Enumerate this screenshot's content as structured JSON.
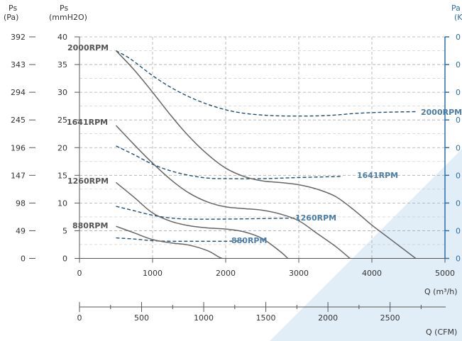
{
  "chart_data": {
    "type": "line",
    "title": "",
    "colors": {
      "static_curve": "#666666",
      "power_curve": "#1e4f7a",
      "grid": "#aaaaaa",
      "right_axis": "#2a6fa8",
      "watermark": "#dcebf7"
    },
    "axes": {
      "y_pa": {
        "label_line1": "Ps",
        "label_line2": "(Pa)",
        "ticks": [
          "392",
          "343",
          "294",
          "245",
          "196",
          "147",
          "98",
          "49",
          "0"
        ]
      },
      "y_mmh2o": {
        "label_line1": "Ps",
        "label_line2": "(mmH2O)",
        "ylim": [
          0,
          40
        ],
        "ticks": [
          0,
          5,
          10,
          15,
          20,
          25,
          30,
          35,
          40
        ]
      },
      "y_power": {
        "label_line1": "Pa",
        "label_line2": "(K",
        "ticks": [
          "0",
          "0",
          "0",
          "0",
          "0",
          "0",
          "0",
          "0",
          "0"
        ]
      },
      "x_m3h": {
        "label": "Q (m³/h)",
        "xlim": [
          0,
          5000
        ],
        "ticks": [
          0,
          1000,
          2000,
          3000,
          4000,
          5000
        ]
      },
      "x_cfm": {
        "label": "Q (CFM)",
        "xlim": [
          0,
          2942
        ],
        "ticks": [
          0,
          500,
          1000,
          1500,
          2000,
          2500
        ]
      }
    },
    "grid": true,
    "pressure_series": [
      {
        "name": "2000RPM",
        "points": [
          [
            500,
            37.5
          ],
          [
            750,
            34
          ],
          [
            1000,
            30
          ],
          [
            1250,
            25.8
          ],
          [
            1500,
            22
          ],
          [
            1750,
            18.8
          ],
          [
            2000,
            16.3
          ],
          [
            2250,
            14.8
          ],
          [
            2500,
            14
          ],
          [
            2750,
            13.7
          ],
          [
            3000,
            13.3
          ],
          [
            3250,
            12.5
          ],
          [
            3500,
            11.2
          ],
          [
            3750,
            8.8
          ],
          [
            4000,
            6
          ],
          [
            4250,
            3.5
          ],
          [
            4600,
            0
          ]
        ]
      },
      {
        "name": "1641RPM",
        "points": [
          [
            500,
            24
          ],
          [
            750,
            20.5
          ],
          [
            1000,
            17.2
          ],
          [
            1250,
            14.2
          ],
          [
            1500,
            11.8
          ],
          [
            1750,
            10.2
          ],
          [
            2000,
            9.3
          ],
          [
            2250,
            9
          ],
          [
            2500,
            8.7
          ],
          [
            2750,
            8
          ],
          [
            3000,
            6.8
          ],
          [
            3250,
            4.5
          ],
          [
            3500,
            2.2
          ],
          [
            3700,
            0
          ]
        ]
      },
      {
        "name": "1260RPM",
        "points": [
          [
            500,
            13.7
          ],
          [
            750,
            11
          ],
          [
            1000,
            8.2
          ],
          [
            1250,
            6.7
          ],
          [
            1500,
            5.9
          ],
          [
            1750,
            5.5
          ],
          [
            2000,
            5.3
          ],
          [
            2250,
            4.8
          ],
          [
            2500,
            3.6
          ],
          [
            2750,
            1.2
          ],
          [
            2850,
            0
          ]
        ]
      },
      {
        "name": "880RPM",
        "points": [
          [
            500,
            5.8
          ],
          [
            750,
            4.6
          ],
          [
            1000,
            3.4
          ],
          [
            1250,
            2.8
          ],
          [
            1500,
            2.4
          ],
          [
            1750,
            1.4
          ],
          [
            1900,
            0.3
          ],
          [
            1950,
            0
          ]
        ]
      }
    ],
    "power_series": [
      {
        "name": "2000RPM",
        "points": [
          [
            500,
            37.5
          ],
          [
            700,
            36
          ],
          [
            1000,
            33
          ],
          [
            1300,
            30.5
          ],
          [
            1600,
            28.6
          ],
          [
            1900,
            27.2
          ],
          [
            2200,
            26.3
          ],
          [
            2600,
            25.8
          ],
          [
            3000,
            25.7
          ],
          [
            3400,
            25.8
          ],
          [
            3800,
            26.2
          ],
          [
            4200,
            26.4
          ],
          [
            4600,
            26.5
          ]
        ]
      },
      {
        "name": "1641RPM",
        "points": [
          [
            500,
            20.3
          ],
          [
            750,
            18.7
          ],
          [
            1000,
            17
          ],
          [
            1250,
            15.8
          ],
          [
            1500,
            15
          ],
          [
            1750,
            14.5
          ],
          [
            2000,
            14.4
          ],
          [
            2500,
            14.4
          ],
          [
            3000,
            14.6
          ],
          [
            3600,
            14.8
          ]
        ]
      },
      {
        "name": "1260RPM",
        "points": [
          [
            500,
            9.4
          ],
          [
            750,
            8.6
          ],
          [
            1000,
            7.8
          ],
          [
            1250,
            7.3
          ],
          [
            1500,
            7.1
          ],
          [
            2000,
            7.1
          ],
          [
            2500,
            7.2
          ],
          [
            3000,
            7.3
          ]
        ]
      },
      {
        "name": "880RPM",
        "points": [
          [
            500,
            3.7
          ],
          [
            750,
            3.5
          ],
          [
            1000,
            3.2
          ],
          [
            1250,
            3.1
          ],
          [
            1500,
            3.1
          ],
          [
            1750,
            3.1
          ],
          [
            2000,
            3.1
          ],
          [
            2250,
            3.2
          ]
        ]
      }
    ],
    "rpm_labels_pressure": [
      "2000RPM",
      "1641RPM",
      "1260RPM",
      "880RPM"
    ],
    "rpm_labels_power": [
      "2000RPM",
      "1641RPM",
      "1260RPM",
      "880RPM"
    ]
  }
}
